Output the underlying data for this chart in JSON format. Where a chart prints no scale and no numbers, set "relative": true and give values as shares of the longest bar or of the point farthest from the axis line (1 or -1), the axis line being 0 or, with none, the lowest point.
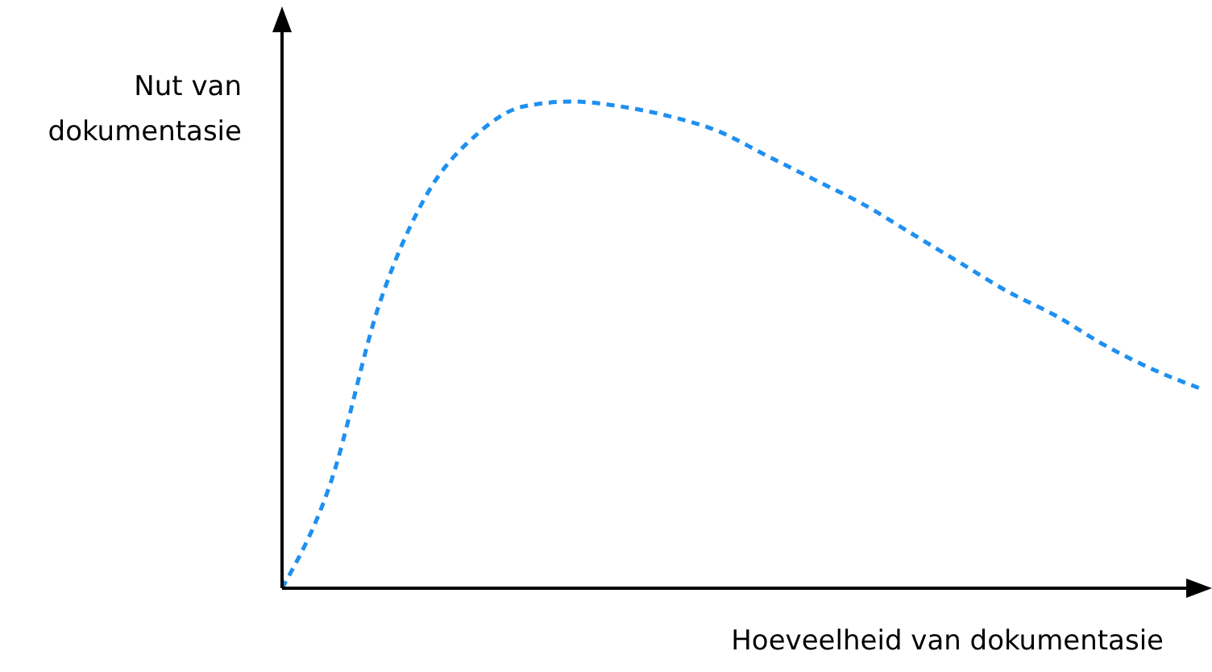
{
  "chart_data": {
    "type": "line",
    "relative": true,
    "xlabel": "Hoeveelheid van dokumentasie",
    "ylabel": "Nut van dokumentasie",
    "categories": [
      null,
      null,
      null,
      null,
      null,
      null,
      null,
      null,
      null,
      null,
      null,
      null,
      null,
      null,
      null,
      null,
      null,
      null,
      null,
      null
    ],
    "series": [
      {
        "color": "#1e90f0",
        "values": [
          0,
          0.215,
          0.58,
          0.81,
          0.93,
          0.99,
          1,
          0.99,
          0.97,
          0.94,
          0.89,
          0.84,
          0.79,
          0.73,
          0.67,
          0.61,
          0.56,
          0.5,
          0.45,
          0.41
        ]
      }
    ],
    "line_style": "dashed",
    "marker": "none",
    "grid": false
  }
}
